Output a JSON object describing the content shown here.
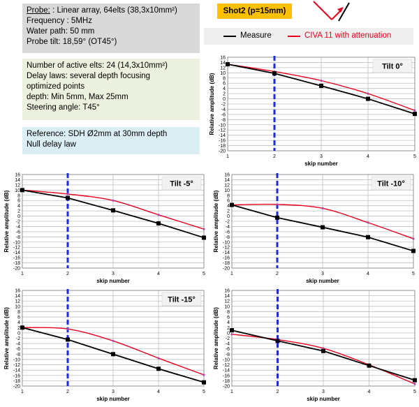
{
  "info": {
    "probe_lines": [
      {
        "label": "Probe:",
        "text": " : Linear array, 64elts (38,3x10mm²)"
      },
      {
        "text": "Frequency : 5MHz"
      },
      {
        "text": "Water path: 50 mm"
      },
      {
        "text": "Probe tilt: 18,59° (OT45°)"
      }
    ],
    "elements_lines": [
      "Number of active elts: 24 (14,3x10mm²)",
      "Delay laws: several depth focusing",
      "optimized points",
      "depth: Min 5mm, Max 25mm",
      "Steering angle: T45°"
    ],
    "reference_lines": [
      "Reference: SDH Ø2mm at 30mm depth",
      "Null delay law"
    ],
    "shot_label": "Shot2 (p=15mm)"
  },
  "legend": {
    "measure_label": "Measure",
    "civa_label": "CIVA 11 with attenuation",
    "measure_color": "#000000",
    "civa_color": "#e8001c"
  },
  "colors": {
    "measure": "#000000",
    "civa": "#e8001c",
    "civa_marker": "#b04ab0",
    "reference_line": "#1f2bd6",
    "grid": "#bfbfbf"
  },
  "icons": [
    "ray-reflection-icon"
  ],
  "chart_data": [
    {
      "type": "line",
      "title": "Tilt 0°",
      "xlabel": "skip number",
      "ylabel": "Relative amplitude (dB)",
      "x": [
        1,
        2,
        3,
        4,
        5
      ],
      "xlim": [
        1,
        5
      ],
      "ylim": [
        -20,
        16
      ],
      "ystep": 2,
      "grid": true,
      "reference_x": 2,
      "series": [
        {
          "name": "Measure",
          "values": [
            13.3,
            9.8,
            5.0,
            0.0,
            -5.8
          ]
        },
        {
          "name": "CIVA 11 with attenuation",
          "values": [
            13.3,
            10.5,
            7.0,
            2.0,
            -4.5
          ]
        }
      ]
    },
    {
      "type": "line",
      "title": "Tilt -5°",
      "xlabel": "skip number",
      "ylabel": "Relative amplitude (dB)",
      "x": [
        1,
        2,
        3,
        4,
        5
      ],
      "xlim": [
        1,
        5
      ],
      "ylim": [
        -20,
        16
      ],
      "ystep": 2,
      "grid": true,
      "reference_x": 2,
      "series": [
        {
          "name": "Measure",
          "values": [
            10.0,
            7.0,
            2.2,
            -2.8,
            -8.3
          ]
        },
        {
          "name": "CIVA 11 with attenuation",
          "values": [
            10.0,
            8.5,
            6.0,
            0.5,
            -5.0
          ]
        }
      ]
    },
    {
      "type": "line",
      "title": "Tilt -10°",
      "xlabel": "skip number",
      "ylabel": "Relative amplitude (dB)",
      "x": [
        1,
        2,
        3,
        4,
        5
      ],
      "xlim": [
        1,
        5
      ],
      "ylim": [
        -20,
        16
      ],
      "ystep": 2,
      "grid": true,
      "reference_x": 2,
      "series": [
        {
          "name": "Measure",
          "values": [
            4.3,
            -0.6,
            -4.3,
            -8.1,
            -13.4
          ]
        },
        {
          "name": "CIVA 11 with attenuation",
          "values": [
            4.3,
            4.5,
            3.0,
            -2.5,
            -8.7
          ]
        }
      ]
    },
    {
      "type": "line",
      "title": "Tilt -15°",
      "xlabel": "skip number",
      "ylabel": "Relative amplitude (dB)",
      "x": [
        1,
        2,
        3,
        4,
        5
      ],
      "xlim": [
        1,
        5
      ],
      "ylim": [
        -20,
        16
      ],
      "ystep": 2,
      "grid": true,
      "reference_x": 2,
      "series": [
        {
          "name": "Measure",
          "values": [
            2.0,
            -2.5,
            -8.0,
            -13.5,
            -18.6
          ]
        },
        {
          "name": "CIVA 11 with attenuation",
          "values": [
            2.0,
            1.5,
            -3.0,
            -9.5,
            -15.8
          ]
        }
      ]
    },
    {
      "type": "line",
      "title": "",
      "xlabel": "skip number",
      "ylabel": "Relative amplitude (dB)",
      "x": [
        1,
        2,
        3,
        4,
        5
      ],
      "xlim": [
        1,
        5
      ],
      "ylim": [
        -20,
        16
      ],
      "ystep": 2,
      "grid": true,
      "reference_x": 2,
      "series": [
        {
          "name": "Measure",
          "values": [
            1.0,
            -3.0,
            -6.8,
            -12.3,
            -17.8
          ]
        },
        {
          "name": "CIVA 11 with attenuation",
          "values": [
            -0.5,
            -2.5,
            -5.8,
            -12.0,
            -19.2
          ]
        }
      ]
    }
  ]
}
